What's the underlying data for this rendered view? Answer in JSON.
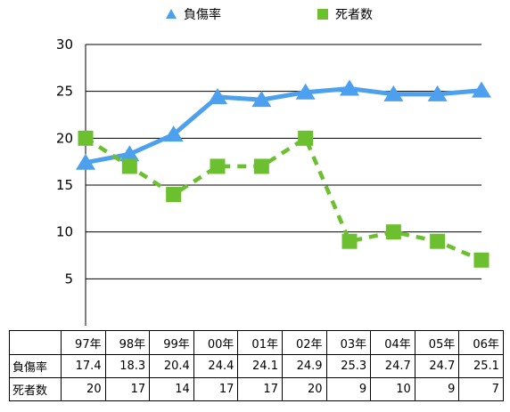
{
  "chart_data": {
    "type": "line",
    "title": "",
    "xlabel": "",
    "ylabel": "",
    "ylim": [
      0,
      30
    ],
    "yticks": [
      5,
      10,
      15,
      20,
      25,
      30
    ],
    "grid": true,
    "legend": "top",
    "categories": [
      "97年",
      "98年",
      "99年",
      "00年",
      "01年",
      "02年",
      "03年",
      "04年",
      "05年",
      "06年"
    ],
    "series": [
      {
        "name": "負傷率",
        "values": [
          17.4,
          18.3,
          20.4,
          24.4,
          24.1,
          24.9,
          25.3,
          24.7,
          24.7,
          25.1
        ],
        "color": "#4ca0ee",
        "marker": "triangle",
        "line": "solid"
      },
      {
        "name": "死者数",
        "values": [
          20,
          17,
          14,
          17,
          17,
          20,
          9,
          10,
          9,
          7
        ],
        "color": "#6cbf2e",
        "marker": "square",
        "line": "dashed"
      }
    ],
    "table": {
      "headers": [
        "97年",
        "98年",
        "99年",
        "00年",
        "01年",
        "02年",
        "03年",
        "04年",
        "05年",
        "06年"
      ],
      "rows": [
        {
          "label": "負傷率",
          "values": [
            "17.4",
            "18.3",
            "20.4",
            "24.4",
            "24.1",
            "24.9",
            "25.3",
            "24.7",
            "24.7",
            "25.1"
          ]
        },
        {
          "label": "死者数",
          "values": [
            "20",
            "17",
            "14",
            "17",
            "17",
            "20",
            "9",
            "10",
            "9",
            "7"
          ]
        }
      ]
    }
  }
}
